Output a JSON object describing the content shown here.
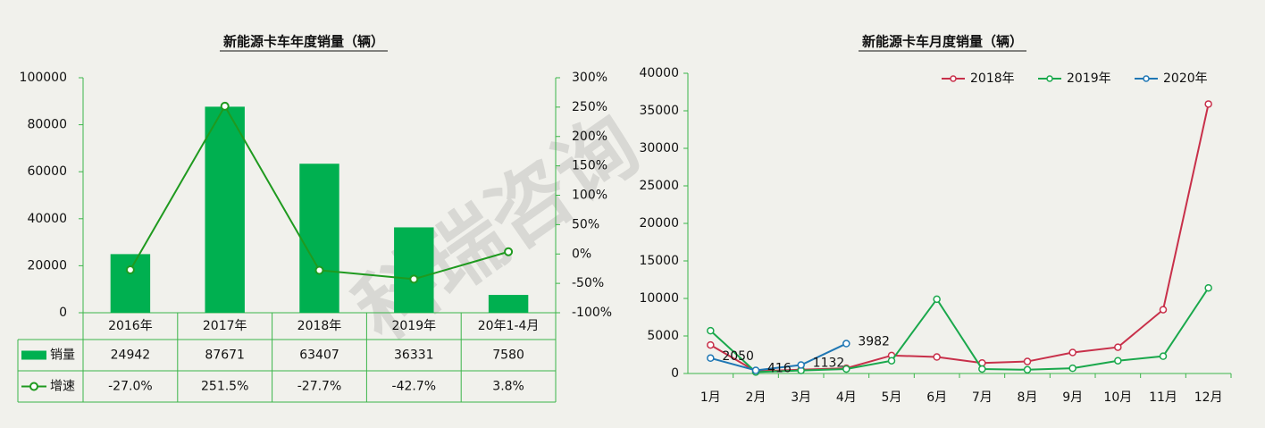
{
  "watermark": "科瑞咨询",
  "chart_data": [
    {
      "type": "bar-line",
      "title": "新能源卡车年度销量（辆）",
      "categories": [
        "2016年",
        "2017年",
        "2018年",
        "2019年",
        "20年1-4月"
      ],
      "series": [
        {
          "name": "销量",
          "color": "#00b050",
          "values": [
            24942,
            87671,
            63407,
            36331,
            7580
          ]
        },
        {
          "name": "增速",
          "color": "#1f9a1f",
          "axis": "y2",
          "values": [
            -27.0,
            251.5,
            -27.7,
            -42.7,
            3.8
          ],
          "value_labels": [
            "-27.0%",
            "251.5%",
            "-27.7%",
            "-42.7%",
            "3.8%"
          ]
        }
      ],
      "ylim": [
        0,
        100000
      ],
      "yticks": [
        0,
        20000,
        40000,
        60000,
        80000,
        100000
      ],
      "y2lim": [
        -100,
        300
      ],
      "y2ticks": [
        {
          "value": -100,
          "label": "-100%"
        },
        {
          "value": -50,
          "label": "-50%"
        },
        {
          "value": 0,
          "label": "0%"
        },
        {
          "value": 50,
          "label": "50%"
        },
        {
          "value": 100,
          "label": "100%"
        },
        {
          "value": 150,
          "label": "150%"
        },
        {
          "value": 200,
          "label": "200%"
        },
        {
          "value": 250,
          "label": "250%"
        },
        {
          "value": 300,
          "label": "300%"
        }
      ]
    },
    {
      "type": "line",
      "title": "新能源卡车月度销量（辆）",
      "categories": [
        "1月",
        "2月",
        "3月",
        "4月",
        "5月",
        "6月",
        "7月",
        "8月",
        "9月",
        "10月",
        "11月",
        "12月"
      ],
      "series": [
        {
          "name": "2018年",
          "color": "#c8304a",
          "values": [
            3800,
            300,
            500,
            700,
            2400,
            2200,
            1400,
            1600,
            2800,
            3500,
            8500,
            35900
          ]
        },
        {
          "name": "2019年",
          "color": "#1aa84c",
          "values": [
            5700,
            200,
            400,
            600,
            1700,
            9900,
            600,
            500,
            700,
            1700,
            2300,
            11400
          ]
        },
        {
          "name": "2020年",
          "color": "#1f77b4",
          "values": [
            2050,
            416,
            1132,
            3982,
            null,
            null,
            null,
            null,
            null,
            null,
            null,
            null
          ],
          "data_labels": true
        }
      ],
      "ylim": [
        0,
        40000
      ],
      "yticks": [
        0,
        5000,
        10000,
        15000,
        20000,
        25000,
        30000,
        35000,
        40000
      ],
      "legend": "top-right"
    }
  ]
}
